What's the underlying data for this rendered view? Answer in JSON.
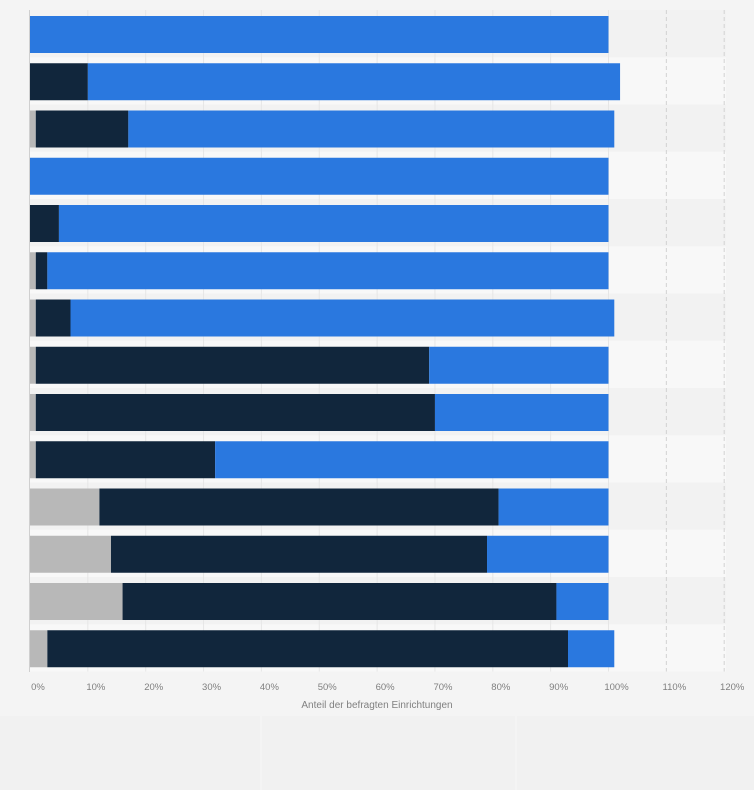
{
  "chart_data": {
    "type": "bar",
    "orientation": "horizontal",
    "stacked": true,
    "title": "",
    "xlabel": "Anteil der befragten Einrichtungen",
    "ylabel": "",
    "xlim": [
      0,
      120
    ],
    "x_ticks": [
      "0%",
      "10%",
      "20%",
      "30%",
      "40%",
      "50%",
      "60%",
      "70%",
      "80%",
      "90%",
      "100%",
      "110%",
      "120%"
    ],
    "category_count": 14,
    "grid": true,
    "legend": "none",
    "series": [
      {
        "color": "#b8b8b8",
        "values": [
          0,
          0,
          1,
          0,
          0,
          1,
          1,
          1,
          1,
          1,
          12,
          14,
          16,
          3
        ]
      },
      {
        "color": "#11263c",
        "values": [
          0,
          10,
          16,
          0,
          5,
          2,
          6,
          68,
          69,
          31,
          69,
          65,
          75,
          90
        ]
      },
      {
        "color": "#2a78df",
        "values": [
          100,
          92,
          84,
          100,
          95,
          97,
          94,
          31,
          30,
          68,
          19,
          21,
          9,
          8
        ]
      }
    ]
  }
}
